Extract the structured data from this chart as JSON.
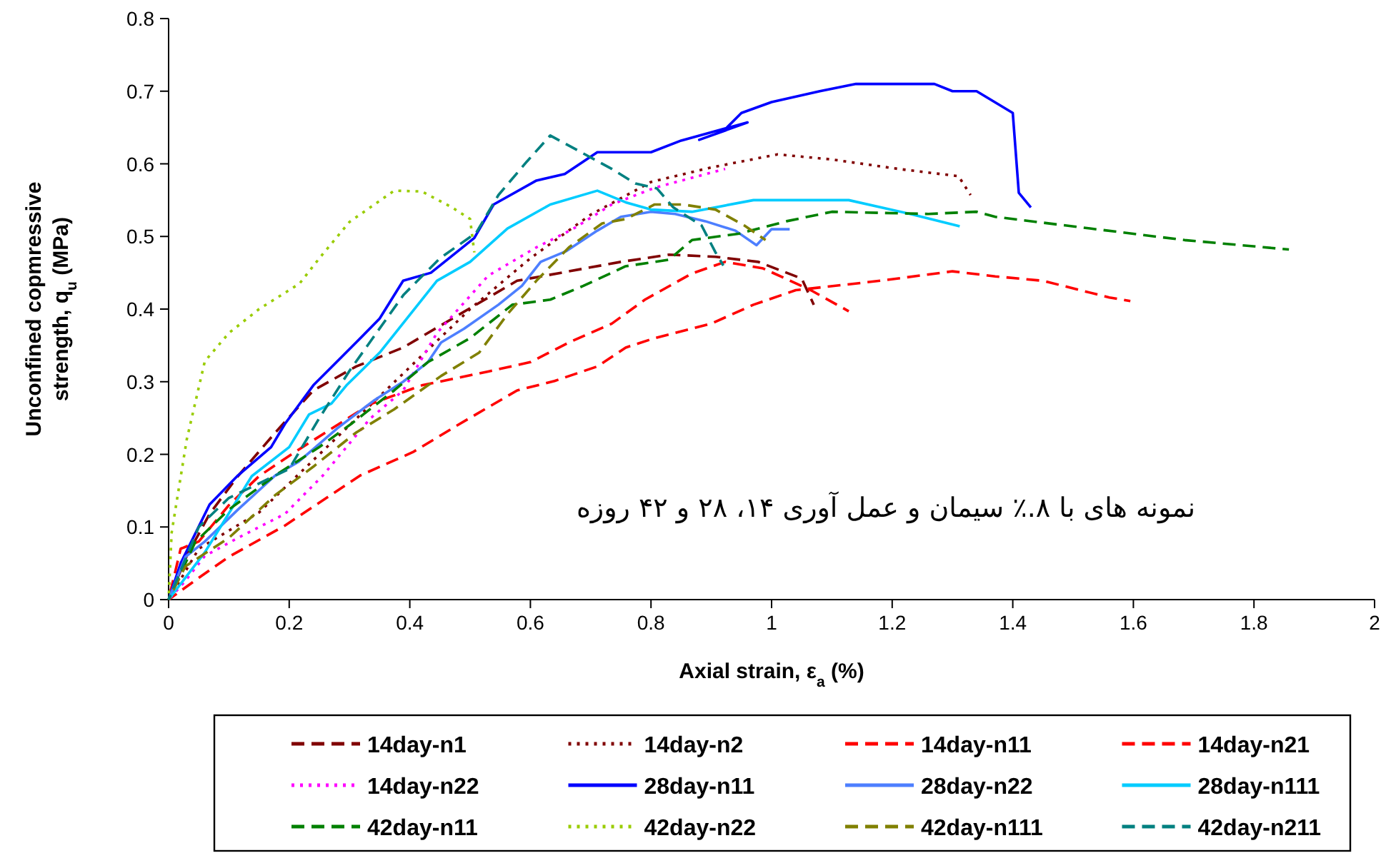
{
  "chart_data": {
    "type": "line",
    "xlabel": "Axial strain, ε$_{a}$ (%)",
    "ylabel": "Unconfined copmressive strength, q$_{u}$ (MPa)",
    "xlim": [
      0,
      2
    ],
    "xticks": [
      0,
      0.2,
      0.4,
      0.6,
      0.8,
      1,
      1.2,
      1.4,
      1.6,
      1.8,
      2
    ],
    "ylim": [
      0,
      0.8
    ],
    "yticks": [
      0,
      0.1,
      0.2,
      0.3,
      0.4,
      0.5,
      0.6,
      0.7,
      0.8
    ],
    "legend": "bottom",
    "annotations": [
      "نمونه های با ۸.٪ سیمان و عمل آوری ۱۴، ۲۸ و ۴۲ روزه"
    ],
    "series": [
      {
        "name": "14day-n1",
        "color": "#800000",
        "line_style": "dashed",
        "x": [
          0,
          0.03,
          0.068,
          0.115,
          0.177,
          0.24,
          0.311,
          0.389,
          0.483,
          0.578,
          0.664,
          0.75,
          0.83,
          0.907,
          0.978,
          1.05,
          1.07
        ],
        "values": [
          0,
          0.06,
          0.118,
          0.17,
          0.23,
          0.288,
          0.321,
          0.347,
          0.393,
          0.439,
          0.452,
          0.465,
          0.475,
          0.472,
          0.465,
          0.442,
          0.406
        ]
      },
      {
        "name": "14day-n2",
        "color": "#800000",
        "line_style": "dotted",
        "x": [
          0,
          0.05,
          0.15,
          0.3,
          0.4,
          0.5,
          0.6,
          0.7,
          0.8,
          0.9,
          1.01,
          1.1,
          1.21,
          1.31,
          1.33
        ],
        "values": [
          0,
          0.07,
          0.12,
          0.24,
          0.32,
          0.4,
          0.47,
          0.53,
          0.575,
          0.595,
          0.613,
          0.606,
          0.593,
          0.583,
          0.557
        ]
      },
      {
        "name": "14day-n11",
        "color": "#ff0000",
        "line_style": "dashed",
        "x": [
          0,
          0.05,
          0.1,
          0.193,
          0.318,
          0.405,
          0.483,
          0.578,
          0.64,
          0.711,
          0.758,
          0.806,
          0.9,
          0.97,
          1.04,
          1.18,
          1.3,
          1.371,
          1.45,
          1.56,
          1.595
        ],
        "values": [
          0,
          0.03,
          0.059,
          0.102,
          0.171,
          0.203,
          0.242,
          0.288,
          0.301,
          0.321,
          0.347,
          0.36,
          0.38,
          0.406,
          0.426,
          0.439,
          0.452,
          0.445,
          0.439,
          0.416,
          0.411
        ]
      },
      {
        "name": "14day-n21",
        "color": "#ff0000",
        "line_style": "dashed",
        "x": [
          0,
          0.02,
          0.05,
          0.1,
          0.15,
          0.209,
          0.334,
          0.42,
          0.53,
          0.6,
          0.664,
          0.735,
          0.79,
          0.868,
          0.923,
          0.986,
          1.065,
          1.128
        ],
        "values": [
          0,
          0.07,
          0.08,
          0.13,
          0.17,
          0.203,
          0.269,
          0.295,
          0.314,
          0.327,
          0.354,
          0.38,
          0.413,
          0.449,
          0.465,
          0.456,
          0.426,
          0.397
        ]
      },
      {
        "name": "14day-n22",
        "color": "#ff00ff",
        "line_style": "dotted",
        "x": [
          0,
          0.028,
          0.06,
          0.115,
          0.193,
          0.256,
          0.295,
          0.334,
          0.389,
          0.445,
          0.53,
          0.61,
          0.67,
          0.735,
          0.806,
          0.923
        ],
        "values": [
          0,
          0.026,
          0.06,
          0.085,
          0.118,
          0.171,
          0.21,
          0.249,
          0.288,
          0.367,
          0.446,
          0.485,
          0.51,
          0.544,
          0.567,
          0.593
        ]
      },
      {
        "name": "28day-n11",
        "color": "#0000ff",
        "line_style": "solid",
        "x": [
          0,
          0.02,
          0.068,
          0.115,
          0.17,
          0.193,
          0.24,
          0.311,
          0.35,
          0.389,
          0.435,
          0.507,
          0.539,
          0.61,
          0.657,
          0.711,
          0.8,
          0.85,
          0.96,
          0.88,
          0.92,
          0.95,
          1.0,
          1.08,
          1.14,
          1.27,
          1.3,
          1.34,
          1.4,
          1.41,
          1.43
        ],
        "values": [
          0,
          0.05,
          0.131,
          0.171,
          0.21,
          0.242,
          0.295,
          0.354,
          0.387,
          0.439,
          0.45,
          0.498,
          0.544,
          0.577,
          0.586,
          0.616,
          0.616,
          0.632,
          0.657,
          0.633,
          0.645,
          0.67,
          0.685,
          0.7,
          0.71,
          0.71,
          0.7,
          0.7,
          0.67,
          0.56,
          0.54
        ]
      },
      {
        "name": "28day-n22",
        "color": "#4d7fff",
        "line_style": "solid",
        "x": [
          0,
          0.028,
          0.06,
          0.115,
          0.177,
          0.216,
          0.28,
          0.342,
          0.389,
          0.43,
          0.452,
          0.49,
          0.547,
          0.586,
          0.617,
          0.66,
          0.711,
          0.75,
          0.8,
          0.84,
          0.89,
          0.94,
          0.975,
          1.0,
          1.03
        ],
        "values": [
          0,
          0.059,
          0.08,
          0.124,
          0.171,
          0.19,
          0.236,
          0.275,
          0.3,
          0.327,
          0.354,
          0.373,
          0.406,
          0.432,
          0.465,
          0.48,
          0.508,
          0.527,
          0.534,
          0.531,
          0.521,
          0.508,
          0.488,
          0.51,
          0.51
        ]
      },
      {
        "name": "28day-n111",
        "color": "#00ccff",
        "line_style": "solid",
        "x": [
          0,
          0.06,
          0.138,
          0.2,
          0.233,
          0.27,
          0.295,
          0.35,
          0.445,
          0.5,
          0.562,
          0.633,
          0.711,
          0.758,
          0.8,
          0.868,
          0.97,
          1.128,
          1.23,
          1.312
        ],
        "values": [
          0,
          0.065,
          0.17,
          0.21,
          0.255,
          0.27,
          0.295,
          0.34,
          0.439,
          0.465,
          0.511,
          0.544,
          0.563,
          0.547,
          0.537,
          0.534,
          0.55,
          0.55,
          0.531,
          0.514
        ]
      },
      {
        "name": "42day-n11",
        "color": "#008000",
        "line_style": "dashed",
        "x": [
          0,
          0.044,
          0.1,
          0.177,
          0.25,
          0.303,
          0.374,
          0.43,
          0.5,
          0.57,
          0.633,
          0.688,
          0.758,
          0.83,
          0.868,
          0.947,
          1.025,
          1.1,
          1.26,
          1.34,
          1.371,
          1.528,
          1.685,
          1.858
        ],
        "values": [
          0,
          0.079,
          0.124,
          0.171,
          0.21,
          0.242,
          0.288,
          0.327,
          0.36,
          0.406,
          0.413,
          0.432,
          0.459,
          0.468,
          0.495,
          0.504,
          0.521,
          0.534,
          0.531,
          0.534,
          0.527,
          0.511,
          0.495,
          0.482
        ]
      },
      {
        "name": "42day-n22",
        "color": "#99cc00",
        "line_style": "dotted",
        "x": [
          0,
          0.005,
          0.03,
          0.06,
          0.1,
          0.15,
          0.217,
          0.25,
          0.3,
          0.374,
          0.42,
          0.47,
          0.5,
          0.507
        ],
        "values": [
          0,
          0.092,
          0.22,
          0.328,
          0.367,
          0.4,
          0.435,
          0.47,
          0.52,
          0.563,
          0.562,
          0.54,
          0.524,
          0.478
        ]
      },
      {
        "name": "42day-n111",
        "color": "#808000",
        "line_style": "dashed",
        "x": [
          0,
          0.028,
          0.1,
          0.177,
          0.24,
          0.311,
          0.374,
          0.452,
          0.515,
          0.562,
          0.61,
          0.664,
          0.719,
          0.758,
          0.806,
          0.853,
          0.907,
          0.955,
          0.99
        ],
        "values": [
          0,
          0.046,
          0.085,
          0.144,
          0.183,
          0.23,
          0.262,
          0.308,
          0.34,
          0.393,
          0.439,
          0.485,
          0.518,
          0.524,
          0.544,
          0.544,
          0.537,
          0.515,
          0.495
        ]
      },
      {
        "name": "42day-n211",
        "color": "#008080",
        "line_style": "dashed",
        "x": [
          0,
          0.05,
          0.1,
          0.2,
          0.25,
          0.3,
          0.39,
          0.45,
          0.51,
          0.547,
          0.594,
          0.633,
          0.735,
          0.774,
          0.81,
          0.837,
          0.884,
          0.907,
          0.92
        ],
        "values": [
          0,
          0.1,
          0.14,
          0.18,
          0.25,
          0.315,
          0.42,
          0.47,
          0.505,
          0.557,
          0.603,
          0.639,
          0.593,
          0.573,
          0.566,
          0.54,
          0.515,
          0.478,
          0.46
        ]
      }
    ]
  }
}
